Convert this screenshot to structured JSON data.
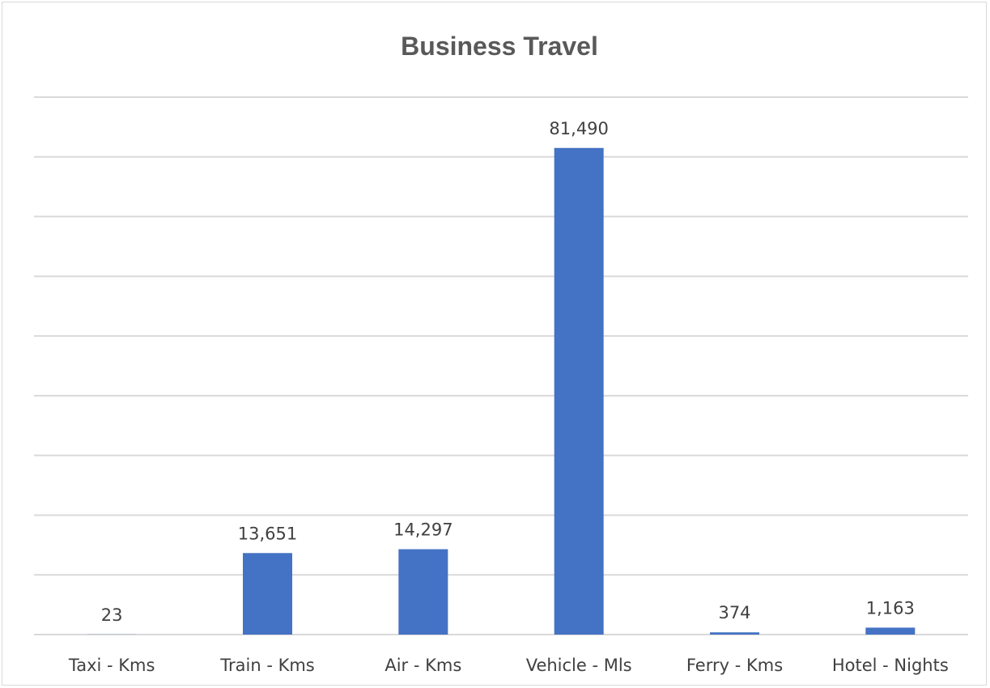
{
  "chart_data": {
    "type": "bar",
    "title": "Business Travel",
    "categories": [
      "Taxi - Kms",
      "Train - Kms",
      "Air - Kms",
      "Vehicle - Mls",
      "Ferry - Kms",
      "Hotel - Nights"
    ],
    "values": [
      23,
      13651,
      14297,
      81490,
      374,
      1163
    ],
    "data_labels": [
      "23",
      "13,651",
      "14,297",
      "81,490",
      "374",
      "1,163"
    ],
    "ylim": [
      0,
      90000
    ],
    "gridlines": true,
    "legend": "none",
    "bar_color": "#4472C4"
  }
}
